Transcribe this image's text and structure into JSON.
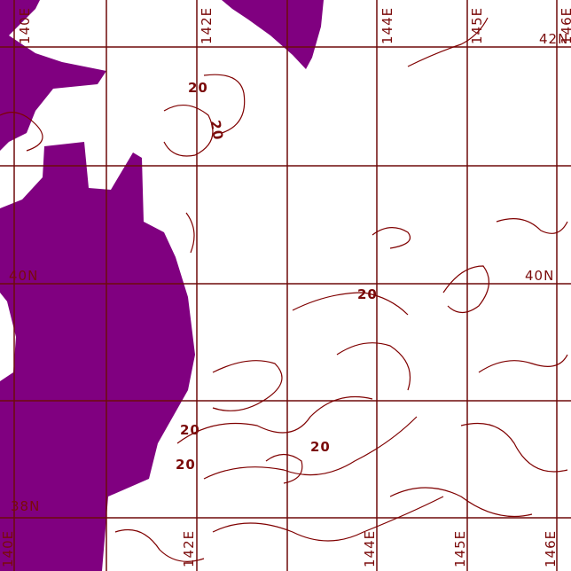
{
  "colors": {
    "land": "#800080",
    "grid": "#6e0a0a",
    "contour": "#7f0000",
    "background": "#ffffff"
  },
  "latitude_labels": [
    "42N",
    "40N",
    "38N"
  ],
  "longitude_labels_top": [
    "140E",
    "142E",
    "144E",
    "145E",
    "146E"
  ],
  "longitude_labels_bottom": [
    "140E",
    "142E",
    "144E",
    "145E",
    "146E"
  ],
  "contour_labels": [
    "20",
    "20",
    "20",
    "20",
    "20",
    "20"
  ]
}
